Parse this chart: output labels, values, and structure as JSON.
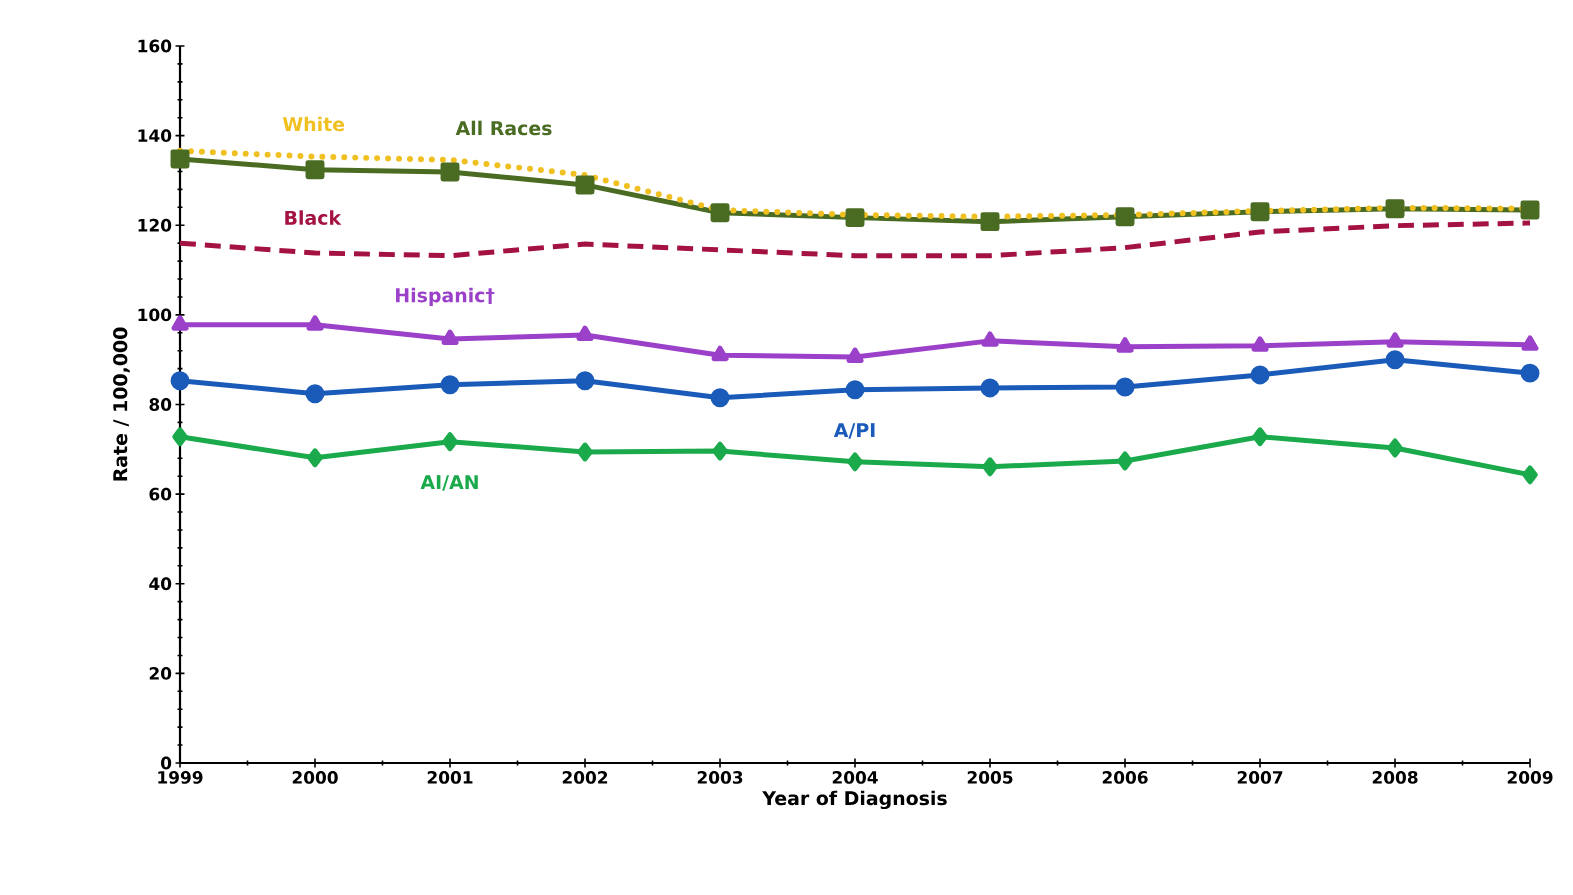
{
  "chart_data": {
    "type": "line",
    "xlabel": "Year of Diagnosis",
    "ylabel": "Rate / 100,000",
    "x": [
      1999,
      2000,
      2001,
      2002,
      2003,
      2004,
      2005,
      2006,
      2007,
      2008,
      2009
    ],
    "xlim": [
      1999,
      2009
    ],
    "xticks": [
      1999,
      2000,
      2001,
      2002,
      2003,
      2004,
      2005,
      2006,
      2007,
      2008,
      2009
    ],
    "ylim": [
      0,
      160
    ],
    "yticks": [
      0,
      20,
      40,
      60,
      80,
      100,
      120,
      140,
      160
    ],
    "grid": false,
    "legend": false,
    "series": [
      {
        "name": "White",
        "color": "#f0c020",
        "marker": "none",
        "line_style": "dotted",
        "values": [
          136.6,
          135.3,
          134.6,
          131.2,
          123.4,
          122.3,
          121.9,
          122.3,
          123.2,
          123.9,
          123.7
        ]
      },
      {
        "name": "All Races",
        "color": "#4a6b22",
        "marker": "square",
        "line_style": "solid",
        "values": [
          134.8,
          132.4,
          131.9,
          129,
          122.8,
          121.7,
          120.8,
          121.9,
          123,
          123.7,
          123.4
        ]
      },
      {
        "name": "Black",
        "color": "#a31240",
        "marker": "none",
        "line_style": "dashed",
        "values": [
          116,
          113.8,
          113.2,
          115.8,
          114.5,
          113.2,
          113.2,
          115,
          118.5,
          119.9,
          120.5
        ]
      },
      {
        "name": "Hispanic†",
        "color": "#9b40c8",
        "marker": "triangle",
        "line_style": "solid",
        "values": [
          97.8,
          97.8,
          94.6,
          95.5,
          91,
          90.6,
          94.2,
          92.9,
          93.1,
          94,
          93.3
        ]
      },
      {
        "name": "A/PI",
        "color": "#1a5ab8",
        "marker": "circle",
        "line_style": "solid",
        "values": [
          85.3,
          82.4,
          84.4,
          85.3,
          81.5,
          83.3,
          83.7,
          83.9,
          86.6,
          90,
          87
        ]
      },
      {
        "name": "AI/AN",
        "color": "#1aaa4c",
        "marker": "diamond",
        "line_style": "solid",
        "values": [
          72.8,
          68.1,
          71.7,
          69.4,
          69.6,
          67.2,
          66.1,
          67.4,
          72.8,
          70.3,
          64.3
        ]
      }
    ]
  }
}
